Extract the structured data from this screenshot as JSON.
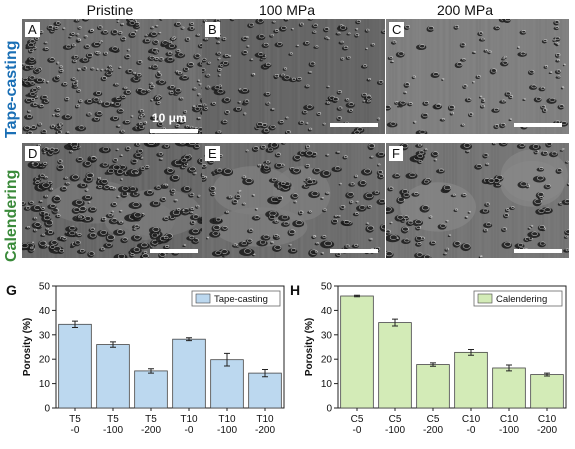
{
  "columns": [
    "Pristine",
    "100 MPa",
    "200 MPa"
  ],
  "rows": [
    "Tape-casting",
    "Calendering"
  ],
  "panels": [
    "A",
    "B",
    "C",
    "D",
    "E",
    "F"
  ],
  "scale_text": "10 μm",
  "colors": {
    "tape": "#bcd8ef",
    "cal": "#d3ebb7",
    "tape_label": "#1a6fb5",
    "cal_label": "#3a8a3a"
  },
  "chart_data": [
    {
      "panel": "G",
      "type": "bar",
      "categories": [
        "T5\n-0",
        "T5\n-100",
        "T5\n-200",
        "T10\n-0",
        "T10\n-100",
        "T10\n-200"
      ],
      "series": [
        {
          "name": "Tape-casting",
          "values": [
            34.3,
            26.0,
            15.2,
            28.2,
            19.8,
            14.3
          ],
          "errors": [
            1.3,
            1.1,
            0.9,
            0.6,
            2.6,
            1.5
          ],
          "color": "#bcd8ef"
        }
      ],
      "ylabel": "Porosity (%)",
      "ylim": [
        0,
        50
      ],
      "yticks": [
        0,
        10,
        20,
        30,
        40,
        50
      ],
      "legend": "top-right"
    },
    {
      "panel": "H",
      "type": "bar",
      "categories": [
        "C5\n-0",
        "C5\n-100",
        "C5\n-200",
        "C10\n-0",
        "C10\n-100",
        "C10\n-200"
      ],
      "series": [
        {
          "name": "Calendering",
          "values": [
            45.9,
            35.0,
            17.8,
            22.8,
            16.4,
            13.7
          ],
          "errors": [
            0.3,
            1.4,
            0.7,
            1.2,
            1.2,
            0.6
          ],
          "color": "#d3ebb7"
        }
      ],
      "ylabel": "Porosity (%)",
      "ylim": [
        0,
        50
      ],
      "yticks": [
        0,
        10,
        20,
        30,
        40,
        50
      ],
      "legend": "top-right"
    }
  ]
}
